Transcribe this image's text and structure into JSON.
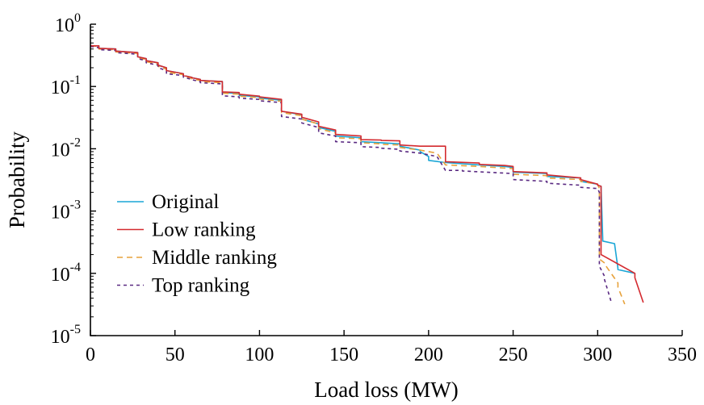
{
  "chart_data": {
    "type": "line",
    "title": "",
    "xlabel": "Load loss (MW)",
    "ylabel": "Probability",
    "xlim": [
      0,
      350
    ],
    "ylim": [
      1e-05,
      1
    ],
    "y_scale": "log",
    "grid": false,
    "legend_position": "lower-left",
    "x_ticks": [
      0,
      50,
      100,
      150,
      200,
      250,
      300,
      350
    ],
    "y_ticks": [
      {
        "value": 1,
        "mantissa": "10",
        "exponent": "0"
      },
      {
        "value": 0.1,
        "mantissa": "10",
        "exponent": "-1"
      },
      {
        "value": 0.01,
        "mantissa": "10",
        "exponent": "-2"
      },
      {
        "value": 0.001,
        "mantissa": "10",
        "exponent": "-3"
      },
      {
        "value": 0.0001,
        "mantissa": "10",
        "exponent": "-4"
      },
      {
        "value": 1e-05,
        "mantissa": "10",
        "exponent": "-5"
      }
    ],
    "series": [
      {
        "name": "Original",
        "color": "#1aa6d6",
        "dash": "solid",
        "x": [
          0,
          5,
          5,
          15,
          15,
          28,
          28,
          33,
          33,
          40,
          40,
          45,
          45,
          55,
          55,
          60,
          60,
          65,
          65,
          78,
          78,
          88,
          88,
          100,
          100,
          113,
          113,
          125,
          125,
          135,
          135,
          145,
          145,
          160,
          160,
          172,
          172,
          183,
          183,
          195,
          195,
          200,
          200,
          210,
          210,
          230,
          230,
          245,
          245,
          250,
          250,
          270,
          270,
          290,
          290,
          300,
          300,
          302,
          302,
          303,
          303,
          310,
          310,
          312,
          312,
          322
        ],
        "y": [
          0.45,
          0.45,
          0.41,
          0.4,
          0.37,
          0.35,
          0.3,
          0.28,
          0.26,
          0.24,
          0.22,
          0.2,
          0.18,
          0.16,
          0.15,
          0.14,
          0.138,
          0.13,
          0.125,
          0.12,
          0.08,
          0.077,
          0.072,
          0.068,
          0.065,
          0.06,
          0.04,
          0.035,
          0.03,
          0.025,
          0.022,
          0.019,
          0.016,
          0.015,
          0.013,
          0.0125,
          0.0125,
          0.012,
          0.011,
          0.0095,
          0.009,
          0.0075,
          0.0065,
          0.006,
          0.006,
          0.0055,
          0.0055,
          0.0052,
          0.0052,
          0.005,
          0.0042,
          0.004,
          0.0036,
          0.0034,
          0.003,
          0.0027,
          0.0026,
          0.0025,
          0.0025,
          0.00035,
          0.00033,
          0.0003,
          0.0003,
          0.00012,
          0.000115,
          0.0001
        ]
      },
      {
        "name": "Low ranking",
        "color": "#d42a2f",
        "dash": "solid",
        "x": [
          0,
          5,
          5,
          15,
          15,
          28,
          28,
          33,
          33,
          40,
          40,
          45,
          45,
          55,
          55,
          60,
          60,
          65,
          65,
          78,
          78,
          88,
          88,
          100,
          100,
          113,
          113,
          125,
          125,
          135,
          135,
          145,
          145,
          160,
          160,
          172,
          172,
          183,
          183,
          195,
          195,
          210,
          210,
          230,
          230,
          245,
          245,
          250,
          250,
          270,
          270,
          290,
          290,
          300,
          300,
          302,
          302,
          322,
          322,
          327
        ],
        "y": [
          0.45,
          0.45,
          0.41,
          0.4,
          0.37,
          0.35,
          0.3,
          0.28,
          0.26,
          0.24,
          0.22,
          0.2,
          0.18,
          0.16,
          0.15,
          0.14,
          0.138,
          0.13,
          0.125,
          0.12,
          0.082,
          0.08,
          0.075,
          0.07,
          0.068,
          0.062,
          0.04,
          0.036,
          0.032,
          0.027,
          0.023,
          0.02,
          0.017,
          0.016,
          0.014,
          0.0138,
          0.0136,
          0.0134,
          0.0115,
          0.011,
          0.011,
          0.011,
          0.0062,
          0.0059,
          0.0056,
          0.0054,
          0.0054,
          0.0052,
          0.0043,
          0.0041,
          0.0038,
          0.0034,
          0.0032,
          0.0027,
          0.0026,
          0.0025,
          0.0002,
          0.0001,
          8.5e-05,
          3.4e-05
        ]
      },
      {
        "name": "Middle ranking",
        "color": "#e7a23c",
        "dash": "dashed",
        "x": [
          0,
          5,
          5,
          15,
          15,
          28,
          28,
          33,
          33,
          40,
          40,
          45,
          45,
          55,
          55,
          60,
          60,
          65,
          65,
          78,
          78,
          88,
          88,
          100,
          100,
          113,
          113,
          125,
          125,
          135,
          135,
          145,
          145,
          160,
          160,
          172,
          172,
          183,
          183,
          195,
          195,
          205,
          205,
          210,
          210,
          230,
          230,
          250,
          250,
          270,
          270,
          290,
          290,
          300,
          300,
          301,
          301,
          305,
          305,
          312,
          312,
          316
        ],
        "y": [
          0.45,
          0.44,
          0.4,
          0.39,
          0.36,
          0.34,
          0.29,
          0.27,
          0.25,
          0.23,
          0.21,
          0.19,
          0.17,
          0.155,
          0.145,
          0.135,
          0.132,
          0.125,
          0.12,
          0.115,
          0.078,
          0.075,
          0.07,
          0.066,
          0.063,
          0.058,
          0.038,
          0.034,
          0.03,
          0.025,
          0.021,
          0.018,
          0.015,
          0.0145,
          0.0125,
          0.012,
          0.0118,
          0.0115,
          0.0105,
          0.0095,
          0.0095,
          0.0085,
          0.0085,
          0.0055,
          0.0055,
          0.0052,
          0.0052,
          0.0048,
          0.0039,
          0.0037,
          0.0034,
          0.0032,
          0.003,
          0.0027,
          0.0027,
          0.0023,
          0.00017,
          0.00014,
          0.00013,
          7e-05,
          6e-05,
          3.2e-05
        ]
      },
      {
        "name": "Top ranking",
        "color": "#5a2a82",
        "dash": "dotted",
        "x": [
          0,
          5,
          5,
          15,
          15,
          28,
          28,
          33,
          33,
          40,
          40,
          45,
          45,
          55,
          55,
          60,
          60,
          65,
          65,
          78,
          78,
          88,
          88,
          100,
          100,
          113,
          113,
          125,
          125,
          135,
          135,
          145,
          145,
          160,
          160,
          172,
          172,
          183,
          183,
          195,
          195,
          205,
          205,
          210,
          210,
          220,
          220,
          250,
          250,
          270,
          270,
          290,
          290,
          300,
          300,
          301,
          301,
          304,
          304,
          308
        ],
        "y": [
          0.44,
          0.42,
          0.39,
          0.38,
          0.35,
          0.33,
          0.28,
          0.26,
          0.24,
          0.22,
          0.2,
          0.18,
          0.16,
          0.15,
          0.14,
          0.13,
          0.128,
          0.12,
          0.115,
          0.11,
          0.071,
          0.068,
          0.065,
          0.062,
          0.059,
          0.055,
          0.033,
          0.03,
          0.026,
          0.022,
          0.018,
          0.016,
          0.013,
          0.0125,
          0.0108,
          0.0105,
          0.0102,
          0.0098,
          0.0092,
          0.0085,
          0.0085,
          0.0075,
          0.0075,
          0.0045,
          0.0045,
          0.0045,
          0.0044,
          0.004,
          0.0032,
          0.003,
          0.0028,
          0.0026,
          0.0024,
          0.0023,
          0.0023,
          0.002,
          0.00013,
          9e-05,
          8e-05,
          3.5e-05
        ]
      }
    ]
  }
}
